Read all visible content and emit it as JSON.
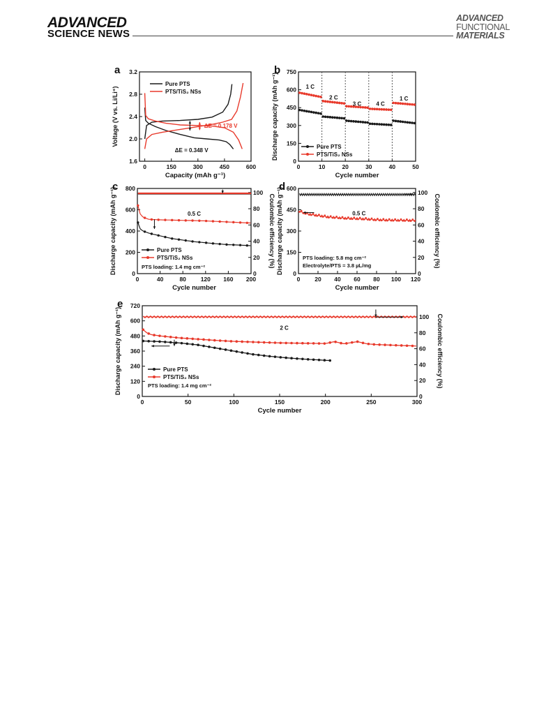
{
  "header": {
    "journal_left_line1": "ADVANCED",
    "journal_left_line2": "SCIENCE NEWS",
    "journal_right_line1": "ADVANCED",
    "journal_right_line2": "FUNCTIONAL",
    "journal_right_line3": "MATERIALS"
  },
  "colors": {
    "pure": "#1a1a1a",
    "tis": "#e8392b"
  },
  "chart_data": [
    {
      "panel": "a",
      "type": "line",
      "xlabel": "Capacity (mAh g⁻¹)",
      "ylabel": "Voltage (V vs. Li/Li⁺)",
      "xlim": [
        -30,
        600
      ],
      "ylim": [
        1.6,
        3.2
      ],
      "xticks": [
        0,
        150,
        300,
        450,
        600
      ],
      "yticks": [
        1.6,
        2.0,
        2.4,
        2.8,
        3.2
      ],
      "legend": [
        "Pure PTS",
        "PTS/TiS₂ NSs"
      ],
      "annotations": [
        "ΔE = 0.178 V",
        "ΔE = 0.348 V"
      ],
      "series": [
        {
          "name": "Pure PTS",
          "color": "pure",
          "segments": [
            {
              "x": [
                0,
                5,
                20,
                60,
                120,
                200,
                280,
                350,
                420,
                460,
                480,
                500
              ],
              "y": [
                2.56,
                2.33,
                2.28,
                2.22,
                2.15,
                2.08,
                2.02,
                2.0,
                1.98,
                1.95,
                1.9,
                1.82
              ]
            },
            {
              "x": [
                0,
                10,
                40,
                100,
                200,
                300,
                380,
                440,
                470,
                485,
                492
              ],
              "y": [
                2.0,
                2.24,
                2.3,
                2.32,
                2.33,
                2.35,
                2.39,
                2.48,
                2.62,
                2.8,
                2.98
              ]
            }
          ]
        },
        {
          "name": "PTS/TiS₂ NSs",
          "color": "tis",
          "segments": [
            {
              "x": [
                0,
                5,
                20,
                60,
                120,
                200,
                300,
                380,
                450,
                500,
                530,
                550
              ],
              "y": [
                2.82,
                2.42,
                2.36,
                2.32,
                2.28,
                2.25,
                2.24,
                2.23,
                2.2,
                2.12,
                1.98,
                1.82
              ]
            },
            {
              "x": [
                0,
                10,
                40,
                100,
                200,
                300,
                380,
                440,
                490,
                520,
                540,
                555
              ],
              "y": [
                1.82,
                2.0,
                2.08,
                2.12,
                2.17,
                2.22,
                2.26,
                2.3,
                2.35,
                2.5,
                2.75,
                3.0
              ]
            }
          ]
        }
      ]
    },
    {
      "panel": "b",
      "type": "scatter",
      "xlabel": "Cycle number",
      "ylabel": "Discharge capacity (mAh g⁻¹)",
      "xlim": [
        0,
        50
      ],
      "ylim": [
        0,
        750
      ],
      "xticks": [
        0,
        10,
        20,
        30,
        40,
        50
      ],
      "yticks": [
        0,
        150,
        300,
        450,
        600,
        750
      ],
      "rate_labels": [
        "1 C",
        "2 C",
        "3 C",
        "4 C",
        "1 C"
      ],
      "legend": [
        "Pure PTS",
        "PTS/TiS₂ NSs"
      ],
      "series": [
        {
          "name": "Pure PTS",
          "color": "pure",
          "blocks": [
            [
              430,
              400
            ],
            [
              375,
              360
            ],
            [
              340,
              325
            ],
            [
              315,
              305
            ],
            [
              340,
              320
            ]
          ]
        },
        {
          "name": "PTS/TiS₂ NSs",
          "color": "tis",
          "blocks": [
            [
              575,
              540
            ],
            [
              505,
              485
            ],
            [
              462,
              450
            ],
            [
              440,
              432
            ],
            [
              490,
              475
            ]
          ]
        }
      ]
    },
    {
      "panel": "c",
      "type": "line",
      "xlabel": "Cycle number",
      "ylabel": "Discharge capacity (mAh g⁻¹)",
      "y2label": "Coulombic efficiency (%)",
      "xlim": [
        0,
        200
      ],
      "ylim": [
        0,
        800
      ],
      "y2lim": [
        0,
        105
      ],
      "xticks": [
        0,
        40,
        80,
        120,
        160,
        200
      ],
      "yticks": [
        0,
        200,
        400,
        600,
        800
      ],
      "y2ticks": [
        0,
        20,
        40,
        60,
        80,
        100
      ],
      "rate": "0.5 C",
      "loading": "PTS loading: 1.4 mg cm⁻²",
      "legend": [
        "Pure PTS",
        "PTS/TiS₂ NSs"
      ],
      "series": [
        {
          "name": "Pure PTS",
          "color": "pure",
          "x": [
            1,
            5,
            10,
            20,
            40,
            60,
            80,
            100,
            120,
            140,
            160,
            180,
            200
          ],
          "y": [
            480,
            420,
            400,
            380,
            355,
            330,
            315,
            300,
            290,
            280,
            272,
            268,
            262
          ],
          "ce": 98.5
        },
        {
          "name": "PTS/TiS₂ NSs",
          "color": "tis",
          "x": [
            1,
            5,
            10,
            20,
            40,
            60,
            80,
            100,
            120,
            140,
            160,
            180,
            200
          ],
          "y": [
            640,
            560,
            530,
            510,
            505,
            503,
            500,
            498,
            495,
            490,
            485,
            480,
            475
          ],
          "ce": 99
        }
      ]
    },
    {
      "panel": "d",
      "type": "line",
      "xlabel": "Cycle number",
      "ylabel": "Discharge capacity (mAh g⁻¹)",
      "y2label": "Coulombic efficiency (%)",
      "xlim": [
        0,
        120
      ],
      "ylim": [
        0,
        600
      ],
      "y2lim": [
        0,
        105
      ],
      "xticks": [
        0,
        20,
        40,
        60,
        80,
        100,
        120
      ],
      "yticks": [
        0,
        150,
        300,
        450,
        600
      ],
      "y2ticks": [
        0,
        20,
        40,
        60,
        80,
        100
      ],
      "rate": "0.5 C",
      "loading": "PTS loading: 5.8 mg cm⁻²",
      "electrolyte": "Electrolyte/PTS = 3.8 µL/mg",
      "series": [
        {
          "name": "PTS/TiS₂ NSs",
          "color": "tis",
          "x": [
            1,
            5,
            10,
            20,
            30,
            40,
            50,
            60,
            70,
            80,
            90,
            100,
            110,
            120
          ],
          "y": [
            440,
            430,
            420,
            410,
            400,
            395,
            390,
            388,
            385,
            380,
            378,
            377,
            376,
            375
          ],
          "ce": 97.5
        }
      ]
    },
    {
      "panel": "e",
      "type": "line",
      "xlabel": "Cycle number",
      "ylabel": "Discharge capacity (mAh g⁻¹)",
      "y2label": "Coulombic efficiency (%)",
      "xlim": [
        0,
        300
      ],
      "ylim": [
        0,
        720
      ],
      "y2lim": [
        0,
        114
      ],
      "xticks": [
        0,
        50,
        100,
        150,
        200,
        250,
        300
      ],
      "yticks": [
        0,
        120,
        240,
        360,
        480,
        600,
        720
      ],
      "y2ticks": [
        0,
        20,
        40,
        60,
        80,
        100
      ],
      "rate": "2 C",
      "loading": "PTS loading: 1.4 mg cm⁻²",
      "legend": [
        "Pure PTS",
        "PTS/TiS₂ NSs"
      ],
      "series": [
        {
          "name": "Pure PTS",
          "color": "pure",
          "x": [
            1,
            10,
            20,
            40,
            60,
            80,
            100,
            120,
            140,
            160,
            180,
            205
          ],
          "y": [
            440,
            438,
            435,
            425,
            410,
            385,
            360,
            335,
            318,
            305,
            295,
            285
          ],
          "ce": 99
        },
        {
          "name": "PTS/TiS₂ NSs",
          "color": "tis",
          "x": [
            1,
            5,
            10,
            20,
            40,
            60,
            80,
            100,
            150,
            200,
            210,
            220,
            235,
            245,
            255,
            300
          ],
          "y": [
            530,
            505,
            490,
            480,
            465,
            455,
            445,
            437,
            425,
            420,
            435,
            418,
            435,
            418,
            412,
            400
          ],
          "ce": 100
        }
      ]
    }
  ]
}
